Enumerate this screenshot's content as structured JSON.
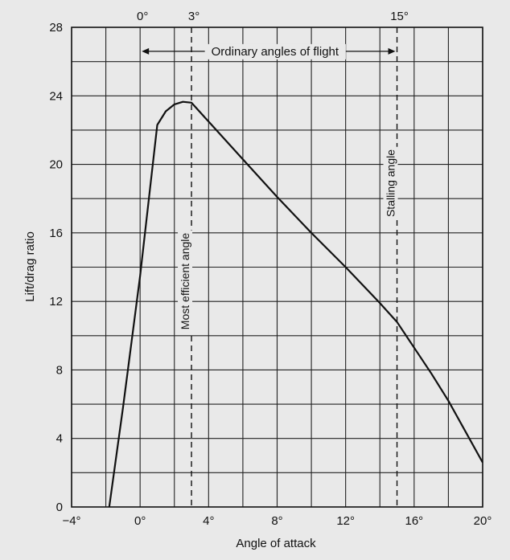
{
  "chart_data": {
    "type": "line",
    "xlabel": "Angle of attack",
    "ylabel": "Lift/drag ratio",
    "xlim": [
      -4,
      20
    ],
    "ylim": [
      0,
      28
    ],
    "x_ticks": [
      -4,
      0,
      4,
      8,
      12,
      16,
      20
    ],
    "x_tick_labels": [
      "−4°",
      "0°",
      "4°",
      "8°",
      "12°",
      "16°",
      "20°"
    ],
    "y_ticks": [
      0,
      4,
      8,
      12,
      16,
      20,
      24,
      28
    ],
    "y_tick_labels": [
      "0",
      "4",
      "8",
      "12",
      "16",
      "20",
      "24",
      "28"
    ],
    "grid": true,
    "series": [
      {
        "x": [
          -1.8,
          -1.0,
          0.0,
          1.0,
          1.5,
          2.0,
          2.5,
          3.0,
          4.0,
          6.0,
          8.0,
          10.0,
          12.0,
          14.0,
          15.0,
          16.0,
          17.0,
          18.0,
          19.0,
          20.0
        ],
        "y": [
          0.0,
          5.8,
          13.5,
          22.3,
          23.1,
          23.5,
          23.65,
          23.6,
          22.5,
          20.3,
          18.1,
          16.0,
          14.0,
          11.9,
          10.8,
          9.3,
          7.8,
          6.2,
          4.4,
          2.6
        ]
      }
    ],
    "reference_lines": [
      {
        "x": 3,
        "top_label": "3°",
        "label": "Most efficient angle"
      },
      {
        "x": 15,
        "top_label": "15°",
        "label": "Stalling angle"
      }
    ],
    "top_labels": [
      {
        "x": 0,
        "label": "0°"
      }
    ],
    "annotation": {
      "text": "Ordinary angles of flight",
      "from_x": 0,
      "to_x": 15,
      "y": 26.6
    },
    "colors": {
      "line": "#111111",
      "background": "#e9e9e9"
    }
  }
}
